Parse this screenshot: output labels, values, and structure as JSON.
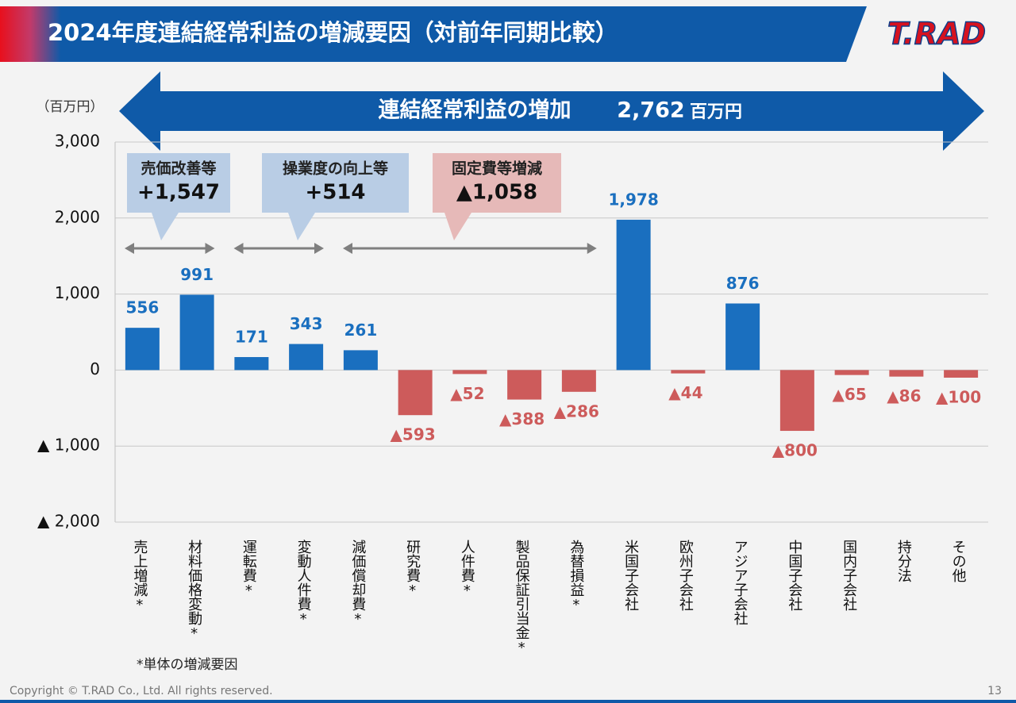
{
  "header": {
    "title": "2024年度連結経常利益の増減要因（対前年同期比較）",
    "logo": "T.RAD"
  },
  "chart_data": {
    "type": "bar",
    "unit_label": "（百万円）",
    "total_arrow": {
      "label": "連結経常利益の増加",
      "value_label": "2,762",
      "unit": "百万円"
    },
    "groups": [
      {
        "label": "売価改善等",
        "value_label": "+1,547",
        "color": "#b9cde5"
      },
      {
        "label": "操業度の向上等",
        "value_label": "+514",
        "color": "#b9cde5"
      },
      {
        "label": "固定費等増減",
        "value_label": "▲1,058",
        "color": "#e6b9b8"
      }
    ],
    "categories": [
      "売上増減*",
      "材料価格変動*",
      "運転費*",
      "変動人件費*",
      "減価償却費*",
      "研究費*",
      "人件費*",
      "製品保証引当金*",
      "為替損益*",
      "米国子会社",
      "欧州子会社",
      "アジア子会社",
      "中国子会社",
      "国内子会社",
      "持分法",
      "その他"
    ],
    "values": [
      556,
      991,
      171,
      343,
      261,
      -593,
      -52,
      -388,
      -286,
      1978,
      -44,
      876,
      -800,
      -65,
      -86,
      -100
    ],
    "value_labels": [
      "556",
      "991",
      "171",
      "343",
      "261",
      "▲593",
      "▲52",
      "▲388",
      "▲286",
      "1,978",
      "▲44",
      "876",
      "▲800",
      "▲65",
      "▲86",
      "▲100"
    ],
    "color": "#1a6fbf",
    "negative_color": "#cd5b5b",
    "ylim": [
      -2000,
      3000
    ],
    "yticks": [
      {
        "value": -2000,
        "label": "▲ 2,000"
      },
      {
        "value": -1000,
        "label": "▲ 1,000"
      },
      0,
      {
        "value": 1000,
        "label": "1,000"
      },
      {
        "value": 2000,
        "label": "2,000"
      },
      {
        "value": 3000,
        "label": "3,000"
      }
    ],
    "grid": true
  },
  "footnote": "*単体の増減要因",
  "footer": {
    "copyright": "Copyright © T.RAD Co., Ltd. All rights reserved.",
    "page": "13"
  }
}
